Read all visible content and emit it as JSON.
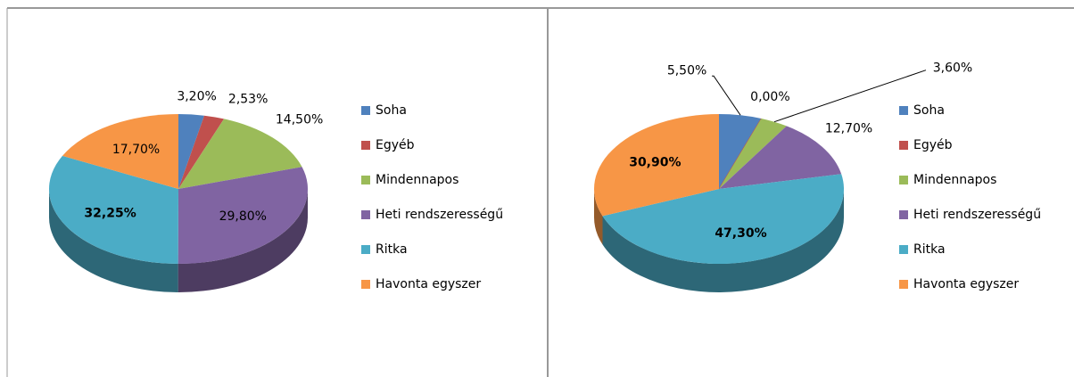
{
  "chart_data": [
    {
      "type": "pie",
      "categories": [
        "Soha",
        "Egyéb",
        "Mindennapos",
        "Heti rendszerességű",
        "Ritka",
        "Havonta egyszer"
      ],
      "values": [
        3.2,
        2.53,
        14.5,
        29.8,
        32.25,
        17.7
      ],
      "value_labels": [
        "3,20%",
        "2,53%",
        "14,50%",
        "29,80%",
        "32,25%",
        "17,70%"
      ],
      "colors": [
        "#4f81bd",
        "#c0504d",
        "#9bbb59",
        "#8064a2",
        "#4bacc6",
        "#f79646"
      ],
      "legend": "right"
    },
    {
      "type": "pie",
      "categories": [
        "Soha",
        "Egyéb",
        "Mindennapos",
        "Heti rendszerességű",
        "Ritka",
        "Havonta egyszer"
      ],
      "values": [
        5.5,
        0.0,
        3.6,
        12.7,
        47.3,
        30.9
      ],
      "value_labels": [
        "5,50%",
        "0,00%",
        "3,60%",
        "12,70%",
        "47,30%",
        "30,90%"
      ],
      "colors": [
        "#4f81bd",
        "#c0504d",
        "#9bbb59",
        "#8064a2",
        "#4bacc6",
        "#f79646"
      ],
      "legend": "right"
    }
  ]
}
